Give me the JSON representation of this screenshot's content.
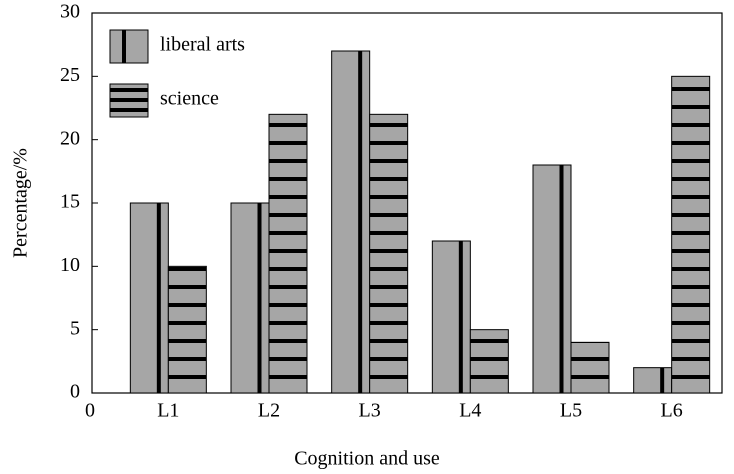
{
  "chart_data": {
    "type": "bar",
    "x_label": "Cognition and use",
    "y_label": "Percentage/%",
    "x_origin_label": "0",
    "categories": [
      "L1",
      "L2",
      "L3",
      "L4",
      "L5",
      "L6"
    ],
    "series": [
      {
        "name": "liberal arts",
        "color": "#a6a6a6",
        "hatch": "vertical",
        "values": [
          15,
          15,
          27,
          12,
          18,
          2
        ]
      },
      {
        "name": "science",
        "color": "#a6a6a6",
        "hatch": "horizontal",
        "values": [
          10,
          22,
          22,
          5,
          4,
          25
        ]
      }
    ],
    "ylim": [
      0,
      30
    ],
    "yticks": [
      0,
      5,
      10,
      15,
      20,
      25,
      30
    ],
    "grid": false,
    "legend": "upper left"
  }
}
